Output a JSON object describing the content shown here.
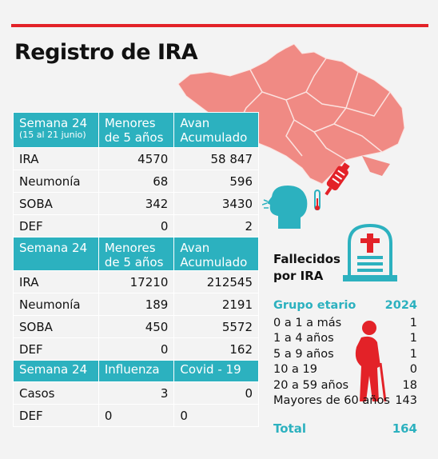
{
  "title": "Registro de IRA",
  "colors": {
    "accent": "#e32228",
    "teal": "#2cb1bf",
    "map": "#f08a84"
  },
  "table1": {
    "headers": [
      "Semana 24",
      "(15 al 21 junio)",
      "Menores",
      "de 5 años",
      "Avan",
      "Acumulado"
    ],
    "rows": [
      {
        "label": "IRA",
        "a": "4570",
        "b": "58 847"
      },
      {
        "label": "Neumonía",
        "a": "68",
        "b": "596"
      },
      {
        "label": "SOBA",
        "a": "342",
        "b": "3430"
      },
      {
        "label": "DEF",
        "a": "0",
        "b": "2"
      }
    ]
  },
  "table2": {
    "headers": [
      "Semana 24",
      "Menores",
      "de 5 años",
      "Avan",
      "Acumulado"
    ],
    "rows": [
      {
        "label": "IRA",
        "a": "17210",
        "b": "212545"
      },
      {
        "label": "Neumonía",
        "a": "189",
        "b": "2191"
      },
      {
        "label": "SOBA",
        "a": "450",
        "b": "5572"
      },
      {
        "label": "DEF",
        "a": "0",
        "b": "162"
      }
    ]
  },
  "table3": {
    "headers": [
      "Semana 24",
      "Influenza",
      "Covid - 19"
    ],
    "rows": [
      {
        "label": "Casos",
        "a": "3",
        "b": "0"
      },
      {
        "label": "DEF",
        "a": "0",
        "b": "0"
      }
    ]
  },
  "fallecidos": {
    "line1": "Fallecidos",
    "line2": "por IRA"
  },
  "ages": {
    "header_label": "Grupo etario",
    "header_year": "2024",
    "rows": [
      {
        "label": "0 a 1 a más",
        "value": "1"
      },
      {
        "label": "1 a 4 años",
        "value": "1"
      },
      {
        "label": "5 a 9 años",
        "value": "1"
      },
      {
        "label": "10 a 19",
        "value": "0"
      },
      {
        "label": "20 a 59 años",
        "value": "18"
      },
      {
        "label": "Mayores de 60 años",
        "value": "143"
      }
    ],
    "total_label": "Total",
    "total_value": "164"
  }
}
